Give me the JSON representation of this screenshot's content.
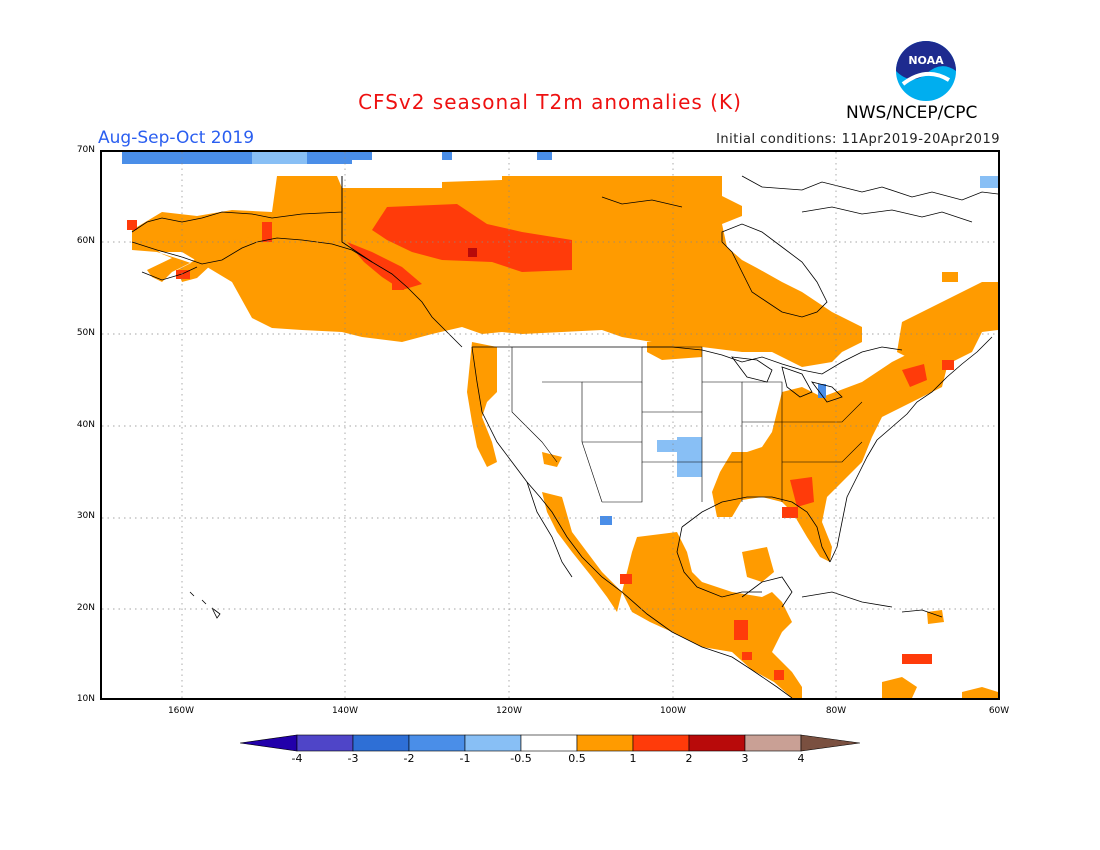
{
  "title": "CFSv2 seasonal T2m anomalies (K)",
  "period": "Aug-Sep-Oct 2019",
  "initial_conditions": "Initial conditions: 11Apr2019-20Apr2019",
  "agency": "NWS/NCEP/CPC",
  "logo_text": "NOAA",
  "map": {
    "projection": "lat-lon",
    "lon_range": [
      -172,
      -60
    ],
    "lat_range": [
      10,
      70
    ],
    "lat_ticks": [
      "70N",
      "60N",
      "50N",
      "40N",
      "30N",
      "20N",
      "10N"
    ],
    "lon_ticks": [
      "160W",
      "140W",
      "120W",
      "100W",
      "80W",
      "60W"
    ]
  },
  "colorbar": {
    "labels": [
      "-4",
      "-3",
      "-2",
      "-1",
      "-0.5",
      "0.5",
      "1",
      "2",
      "3",
      "4"
    ],
    "colors": [
      "#2200aa",
      "#4f45c8",
      "#2e6fd6",
      "#4a8ee8",
      "#88bff5",
      "#ffffff",
      "#ff9b00",
      "#ff3b0a",
      "#b80a0a",
      "#c9a095",
      "#7a5040"
    ]
  },
  "colors": {
    "warm_1": "#ff9b00",
    "warm_2": "#ff3b0a",
    "warm_3": "#b80a0a",
    "cool_1": "#88bff5",
    "cool_2": "#4a8ee8"
  }
}
